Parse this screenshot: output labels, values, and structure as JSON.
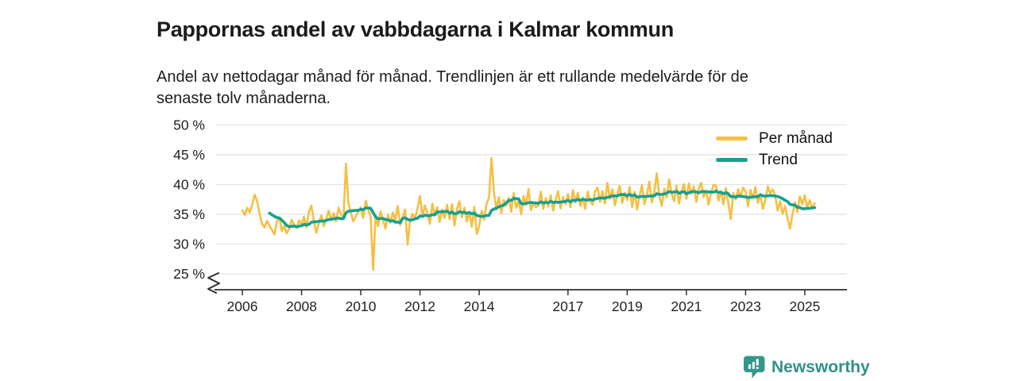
{
  "header": {
    "title": "Pappornas andel av vabbdagarna i Kalmar kommun",
    "subtitle_lines": [
      "Andel av nettodagar månad för månad. Trendlinjen är ett rullande medelvärde för de",
      "senaste tolv månaderna."
    ]
  },
  "legend": {
    "items": [
      {
        "label": "Per månad",
        "color": "#F5BF42"
      },
      {
        "label": "Trend",
        "color": "#17A08F"
      }
    ]
  },
  "footer": {
    "brand": "Newsworthy"
  },
  "colors": {
    "monthly_line": "#F5BF42",
    "trend_line": "#17A08F",
    "grid": "#E2E2E2",
    "axis": "#2E2E2E",
    "text": "#1B1B1B",
    "brand_teal": "#35968C"
  },
  "chart_data": {
    "type": "line",
    "title": "Pappornas andel av vabbdagarna i Kalmar kommun",
    "x_unit": "month",
    "x_start": "2006-01",
    "x_end": "2025-05",
    "x_tick_years": [
      2006,
      2008,
      2010,
      2012,
      2014,
      2017,
      2019,
      2021,
      2023,
      2025
    ],
    "x_tick_labels": [
      "2006",
      "2008",
      "2010",
      "2012",
      "2014",
      "2017",
      "2019",
      "2021",
      "2023",
      "2025"
    ],
    "y_ticks": [
      25,
      30,
      35,
      40,
      45,
      50
    ],
    "y_tick_suffix": " %",
    "ylim": [
      24,
      51
    ],
    "y_axis_break": true,
    "grid": true,
    "legend_position": "top-right",
    "series": [
      {
        "name": "Per månad",
        "color": "#F5BF42",
        "values": [
          35.7,
          34.9,
          36.1,
          35.3,
          36.6,
          38.3,
          37.2,
          35.1,
          33.4,
          32.8,
          33.9,
          33.1,
          32.4,
          31.6,
          33.8,
          34.5,
          32.2,
          33.0,
          31.8,
          32.6,
          34.1,
          33.3,
          32.7,
          34.0,
          33.2,
          34.6,
          32.8,
          35.4,
          36.5,
          33.9,
          31.9,
          33.5,
          34.8,
          33.0,
          34.2,
          35.6,
          34.0,
          35.2,
          33.8,
          36.1,
          35.0,
          34.3,
          43.5,
          36.9,
          35.2,
          33.8,
          34.6,
          35.5,
          36.2,
          34.4,
          37.3,
          35.9,
          34.6,
          25.7,
          34.8,
          33.0,
          35.5,
          34.1,
          32.6,
          34.9,
          33.6,
          35.3,
          34.0,
          36.4,
          33.2,
          34.5,
          35.8,
          29.9,
          33.9,
          35.1,
          34.3,
          36.0,
          38.1,
          34.6,
          36.5,
          35.2,
          33.4,
          36.8,
          34.9,
          36.2,
          33.7,
          35.8,
          34.4,
          36.6,
          34.2,
          36.7,
          33.1,
          35.9,
          37.2,
          34.5,
          36.1,
          33.8,
          35.4,
          32.9,
          36.3,
          31.7,
          33.0,
          35.6,
          34.1,
          36.8,
          37.8,
          44.5,
          38.6,
          35.8,
          37.9,
          35.2,
          37.4,
          36.5,
          37.8,
          35.4,
          38.6,
          36.1,
          37.3,
          35.0,
          38.1,
          36.6,
          39.3,
          35.7,
          37.0,
          36.2,
          36.5,
          38.8,
          35.9,
          37.7,
          36.3,
          38.2,
          35.6,
          37.4,
          38.9,
          36.0,
          37.9,
          36.7,
          38.4,
          36.2,
          39.1,
          37.0,
          38.6,
          36.4,
          37.8,
          35.9,
          38.8,
          37.2,
          36.6,
          38.9,
          39.5,
          37.1,
          38.9,
          36.8,
          40.3,
          37.6,
          39.2,
          36.5,
          38.4,
          39.8,
          36.9,
          38.6,
          37.4,
          39.6,
          36.2,
          38.8,
          35.8,
          38.1,
          39.9,
          36.7,
          38.3,
          40.5,
          37.0,
          38.8,
          41.9,
          38.2,
          36.4,
          39.3,
          37.8,
          40.9,
          38.5,
          37.2,
          39.8,
          36.8,
          38.9,
          40.1,
          37.6,
          40.2,
          38.4,
          39.7,
          37.1,
          39.3,
          40.3,
          37.9,
          39.0,
          36.6,
          38.7,
          39.9,
          39.8,
          37.3,
          38.9,
          36.7,
          39.4,
          36.9,
          34.2,
          38.6,
          37.5,
          39.2,
          38.0,
          39.5,
          38.8,
          36.4,
          39.1,
          37.7,
          39.6,
          36.9,
          38.3,
          35.9,
          37.4,
          39.7,
          38.5,
          39.2,
          38.1,
          35.6,
          37.2,
          35.1,
          36.4,
          34.3,
          32.6,
          34.9,
          37.0,
          35.4,
          38.0,
          36.7,
          38.2,
          36.1,
          37.4,
          36.0,
          36.9
        ]
      },
      {
        "name": "Trend",
        "color": "#17A08F",
        "derivation": "rolling mean of last 12 months",
        "rolling_mean_window": 12
      }
    ]
  }
}
